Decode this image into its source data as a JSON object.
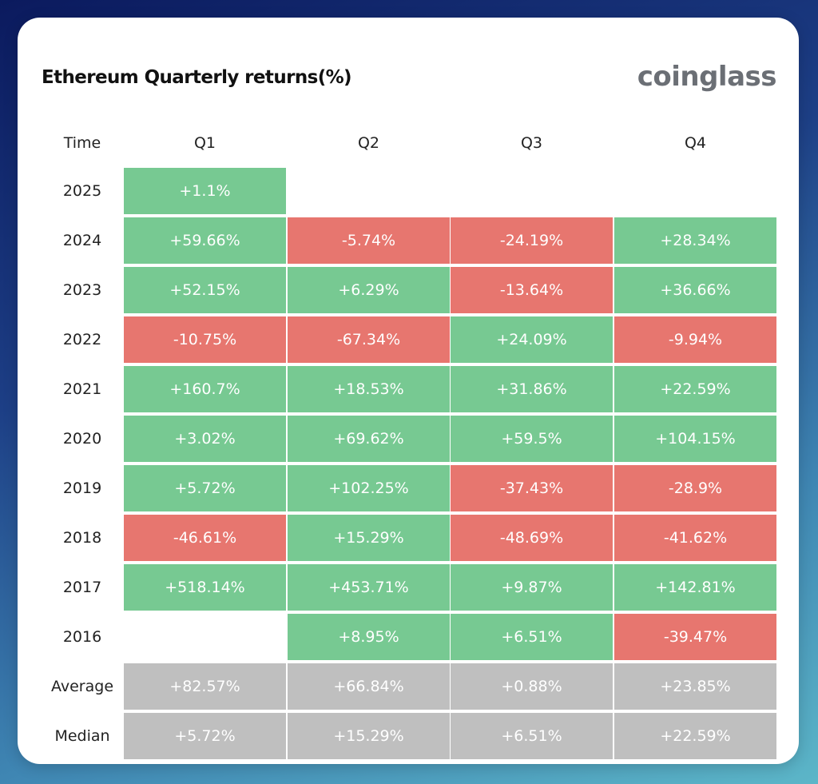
{
  "title": "Ethereum Quarterly returns(%)",
  "logo": "coinglass",
  "colors": {
    "positive": "#77c992",
    "negative": "#e7766f",
    "summary": "#bfbfbf"
  },
  "chart_data": {
    "type": "table",
    "title": "Ethereum Quarterly returns(%)",
    "corner_label": "Time",
    "columns": [
      "Q1",
      "Q2",
      "Q3",
      "Q4"
    ],
    "rows": [
      {
        "label": "2025",
        "values": [
          "+1.1%",
          null,
          null,
          null
        ]
      },
      {
        "label": "2024",
        "values": [
          "+59.66%",
          "-5.74%",
          "-24.19%",
          "+28.34%"
        ]
      },
      {
        "label": "2023",
        "values": [
          "+52.15%",
          "+6.29%",
          "-13.64%",
          "+36.66%"
        ]
      },
      {
        "label": "2022",
        "values": [
          "-10.75%",
          "-67.34%",
          "+24.09%",
          "-9.94%"
        ]
      },
      {
        "label": "2021",
        "values": [
          "+160.7%",
          "+18.53%",
          "+31.86%",
          "+22.59%"
        ]
      },
      {
        "label": "2020",
        "values": [
          "+3.02%",
          "+69.62%",
          "+59.5%",
          "+104.15%"
        ]
      },
      {
        "label": "2019",
        "values": [
          "+5.72%",
          "+102.25%",
          "-37.43%",
          "-28.9%"
        ]
      },
      {
        "label": "2018",
        "values": [
          "-46.61%",
          "+15.29%",
          "-48.69%",
          "-41.62%"
        ]
      },
      {
        "label": "2017",
        "values": [
          "+518.14%",
          "+453.71%",
          "+9.87%",
          "+142.81%"
        ]
      },
      {
        "label": "2016",
        "values": [
          null,
          "+8.95%",
          "+6.51%",
          "-39.47%"
        ]
      }
    ],
    "summary_rows": [
      {
        "label": "Average",
        "values": [
          "+82.57%",
          "+66.84%",
          "+0.88%",
          "+23.85%"
        ]
      },
      {
        "label": "Median",
        "values": [
          "+5.72%",
          "+15.29%",
          "+6.51%",
          "+22.59%"
        ]
      }
    ]
  }
}
